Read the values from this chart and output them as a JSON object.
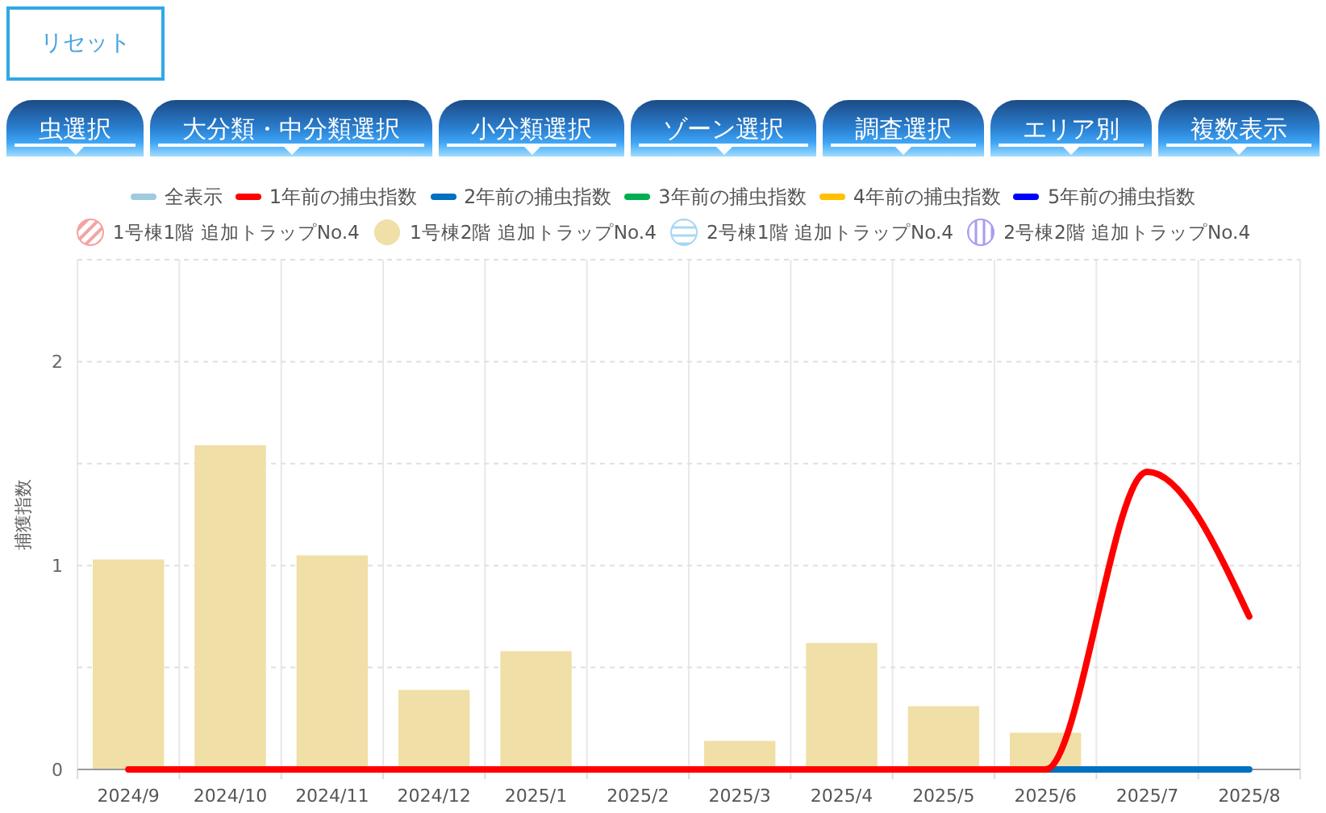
{
  "chart_data": {
    "type": "bar",
    "ylabel": "捕獲指数",
    "categories": [
      "2024/9",
      "2024/10",
      "2024/11",
      "2024/12",
      "2025/1",
      "2025/2",
      "2025/3",
      "2025/4",
      "2025/5",
      "2025/6",
      "2025/7",
      "2025/8"
    ],
    "ylim": [
      0,
      2.5
    ],
    "yticks": [
      0,
      {
        "value": 0.5,
        "label": null
      },
      1,
      {
        "value": 1.5,
        "label": null
      },
      2,
      {
        "value": 2.5,
        "label": null
      }
    ],
    "grid": true,
    "legend": "top",
    "annotations": [
      "リセット",
      "虫選択",
      "大分類・中分類選択",
      "小分類選択",
      "ゾーン選択",
      "調査選択",
      "エリア別",
      "複数表示"
    ],
    "series": [
      {
        "name": "全表示",
        "type": "line",
        "color": "#9ecae1",
        "values": [
          null,
          null,
          null,
          null,
          null,
          null,
          null,
          null,
          null,
          null,
          null,
          null
        ]
      },
      {
        "name": "1年前の捕虫指数",
        "type": "line",
        "color": "#ff0000",
        "values": [
          0,
          0,
          0,
          0,
          0,
          0,
          0,
          0,
          0,
          0,
          1.46,
          0.75
        ]
      },
      {
        "name": "2年前の捕虫指数",
        "type": "line",
        "color": "#0070c0",
        "values": [
          null,
          null,
          null,
          null,
          null,
          null,
          null,
          null,
          null,
          0,
          0,
          0
        ]
      },
      {
        "name": "3年前の捕虫指数",
        "type": "line",
        "color": "#00b050",
        "values": [
          null,
          null,
          null,
          null,
          null,
          null,
          null,
          null,
          null,
          null,
          null,
          null
        ]
      },
      {
        "name": "4年前の捕虫指数",
        "type": "line",
        "color": "#ffc000",
        "values": [
          null,
          null,
          null,
          null,
          null,
          null,
          null,
          null,
          null,
          null,
          null,
          null
        ]
      },
      {
        "name": "5年前の捕虫指数",
        "type": "line",
        "color": "#0000ff",
        "values": [
          null,
          null,
          null,
          null,
          null,
          null,
          null,
          null,
          null,
          null,
          null,
          null
        ]
      },
      {
        "name": "1号棟1階 追加トラップNo.4",
        "color": "#f4a3a3",
        "values": [
          null,
          null,
          null,
          null,
          null,
          null,
          null,
          null,
          null,
          null,
          null,
          null
        ]
      },
      {
        "name": "1号棟2階 追加トラップNo.4",
        "color": "#f0dfa6",
        "values": [
          1.03,
          1.59,
          1.05,
          0.39,
          0.58,
          null,
          0.14,
          0.62,
          0.31,
          0.18,
          null,
          null
        ]
      },
      {
        "name": "2号棟1階 追加トラップNo.4",
        "color": "#a9d6f5",
        "values": [
          null,
          null,
          null,
          null,
          null,
          null,
          null,
          null,
          null,
          null,
          null,
          null
        ]
      },
      {
        "name": "2号棟2階 追加トラップNo.4",
        "color": "#a99cf0",
        "values": [
          null,
          null,
          null,
          null,
          null,
          null,
          null,
          null,
          null,
          null,
          null,
          null
        ]
      }
    ]
  }
}
